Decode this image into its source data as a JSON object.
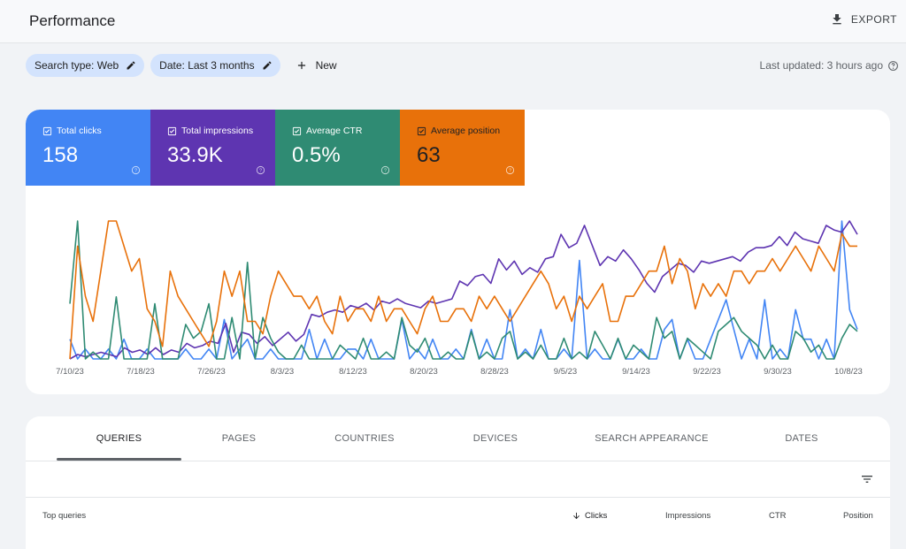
{
  "header": {
    "title": "Performance",
    "export_label": "EXPORT"
  },
  "filters": {
    "search_type": "Search type: Web",
    "date": "Date: Last 3 months",
    "new_label": "New",
    "last_updated": "Last updated: 3 hours ago"
  },
  "metrics": [
    {
      "label": "Total clicks",
      "value": "158",
      "color": "#4285f4"
    },
    {
      "label": "Total impressions",
      "value": "33.9K",
      "color": "#5e35b1"
    },
    {
      "label": "Average CTR",
      "value": "0.5%",
      "color": "#2f8b73"
    },
    {
      "label": "Average position",
      "value": "63",
      "color": "#e8710a"
    }
  ],
  "chart_data": {
    "type": "line",
    "x_tick_labels": [
      "7/10/23",
      "7/18/23",
      "7/26/23",
      "8/3/23",
      "8/12/23",
      "8/20/23",
      "8/28/23",
      "9/5/23",
      "9/14/23",
      "9/22/23",
      "9/30/23",
      "10/8/23"
    ],
    "grid": false,
    "y_axis_labels": false,
    "series": [
      {
        "name": "Total clicks",
        "color": "#4285f4",
        "values": [
          2,
          0,
          1,
          0,
          0,
          1,
          0,
          2,
          0,
          0,
          1,
          0,
          0,
          0,
          0,
          1,
          0,
          0,
          1,
          0,
          4,
          0,
          1,
          2,
          0,
          0,
          1,
          0,
          0,
          0,
          0,
          3,
          0,
          2,
          0,
          0,
          1,
          1,
          0,
          2,
          0,
          0,
          0,
          4,
          0,
          1,
          0,
          2,
          0,
          0,
          1,
          0,
          3,
          0,
          2,
          0,
          0,
          5,
          0,
          1,
          0,
          3,
          0,
          0,
          1,
          0,
          10,
          0,
          1,
          0,
          0,
          2,
          0,
          0,
          1,
          0,
          0,
          3,
          4,
          0,
          2,
          0,
          0,
          2,
          4,
          6,
          3,
          0,
          2,
          0,
          6,
          0,
          1,
          0,
          5,
          2,
          2,
          0,
          2,
          0,
          14,
          5,
          3
        ]
      },
      {
        "name": "Total impressions",
        "color": "#5e35b1",
        "values": [
          18,
          20,
          19,
          20,
          21,
          20,
          19,
          23,
          21,
          22,
          20,
          23,
          20,
          22,
          21,
          25,
          23,
          24,
          26,
          25,
          34,
          21,
          30,
          29,
          25,
          28,
          24,
          27,
          30,
          26,
          29,
          38,
          37,
          39,
          40,
          39,
          42,
          41,
          43,
          40,
          44,
          43,
          45,
          43,
          42,
          41,
          44,
          43,
          44,
          45,
          53,
          51,
          55,
          56,
          52,
          63,
          58,
          62,
          56,
          59,
          57,
          63,
          64,
          74,
          68,
          70,
          78,
          69,
          60,
          64,
          62,
          67,
          63,
          58,
          52,
          48,
          55,
          58,
          61,
          60,
          57,
          62,
          61,
          62,
          63,
          64,
          62,
          66,
          68,
          68,
          69,
          73,
          69,
          75,
          72,
          71,
          70,
          78,
          76,
          75,
          80,
          74
        ]
      },
      {
        "name": "Average CTR",
        "color": "#2f8b73",
        "values": [
          8,
          20,
          0,
          1,
          0,
          0,
          9,
          0,
          0,
          0,
          0,
          8,
          0,
          0,
          0,
          5,
          3,
          4,
          8,
          0,
          0,
          6,
          0,
          14,
          0,
          6,
          3,
          1,
          0,
          0,
          2,
          0,
          0,
          0,
          0,
          2,
          1,
          0,
          3,
          0,
          0,
          1,
          0,
          6,
          2,
          1,
          3,
          0,
          0,
          1,
          0,
          0,
          4,
          0,
          1,
          0,
          3,
          4,
          0,
          1,
          0,
          2,
          0,
          0,
          3,
          0,
          1,
          0,
          4,
          2,
          0,
          3,
          0,
          2,
          1,
          0,
          6,
          3,
          4,
          0,
          3,
          2,
          1,
          0,
          4,
          5,
          6,
          4,
          3,
          2,
          0,
          2,
          0,
          0,
          4,
          3,
          1,
          2,
          0,
          0,
          3,
          5,
          4
        ]
      },
      {
        "name": "Average position",
        "color": "#e8710a",
        "values": [
          63,
          72,
          68,
          66,
          70,
          74,
          74,
          72,
          70,
          71,
          67,
          66,
          64,
          70,
          68,
          67,
          66,
          65,
          64,
          66,
          70,
          68,
          70,
          66,
          66,
          65,
          68,
          70,
          69,
          68,
          68,
          67,
          68,
          66,
          65,
          68,
          66,
          67,
          67,
          66,
          68,
          66,
          67,
          67,
          66,
          65,
          67,
          68,
          66,
          66,
          67,
          67,
          66,
          68,
          67,
          68,
          67,
          66,
          67,
          68,
          69,
          70,
          69,
          67,
          68,
          66,
          68,
          67,
          68,
          69,
          66,
          66,
          68,
          68,
          69,
          70,
          70,
          72,
          69,
          71,
          70,
          67,
          69,
          68,
          69,
          68,
          70,
          70,
          69,
          70,
          70,
          71,
          70,
          71,
          72,
          71,
          70,
          72,
          71,
          70,
          73,
          72,
          72
        ]
      }
    ]
  },
  "table": {
    "tabs": [
      "QUERIES",
      "PAGES",
      "COUNTRIES",
      "DEVICES",
      "SEARCH APPEARANCE",
      "DATES"
    ],
    "headers": {
      "top_queries": "Top queries",
      "clicks": "Clicks",
      "impressions": "Impressions",
      "ctr": "CTR",
      "position": "Position"
    }
  }
}
